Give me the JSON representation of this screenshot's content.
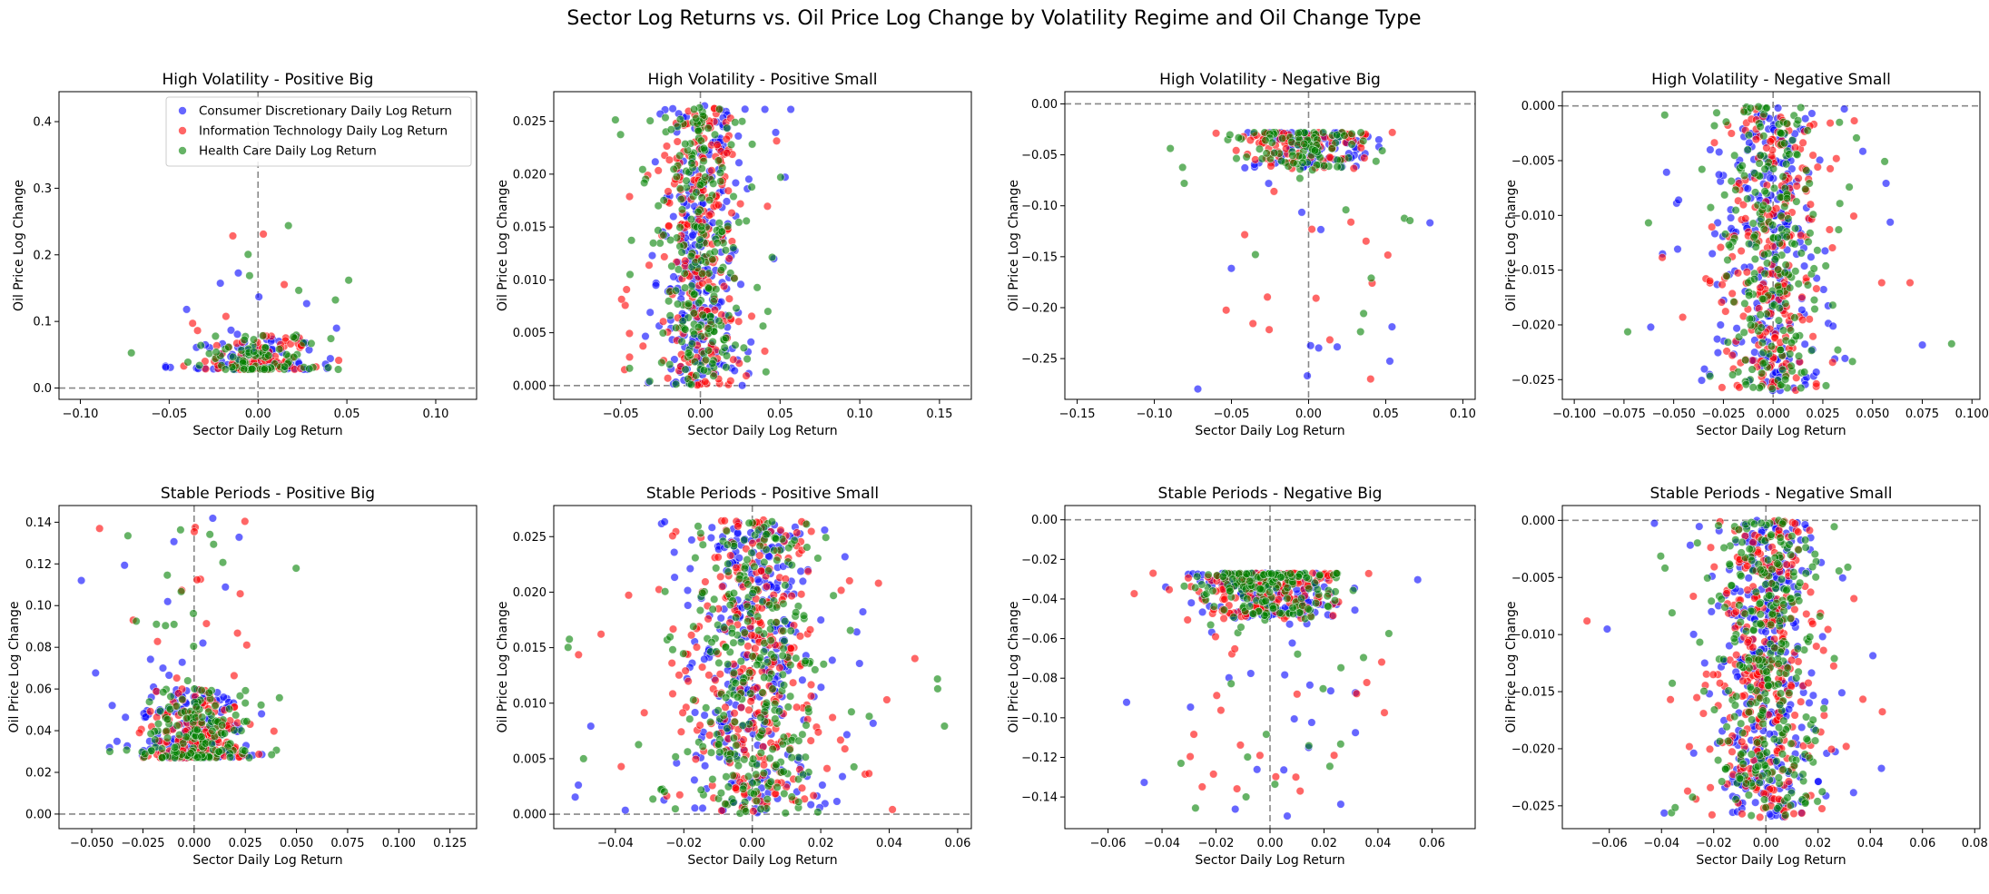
{
  "figure": {
    "title": "Sector Log Returns vs. Oil Price Log Change by Volatility Regime and Oil Change Type"
  },
  "colors": {
    "consumer_discretionary": "#0000ff",
    "information_technology": "#ff0000",
    "health_care": "#008000",
    "reference_line": "#888888"
  },
  "legend": {
    "placement": "upper-right of first panel",
    "entries": [
      "Consumer Discretionary Daily Log Return",
      "Information Technology Daily Log Return",
      "Health Care Daily Log Return"
    ]
  },
  "chart_data": [
    {
      "type": "scatter",
      "title": "High Volatility - Positive Big",
      "xlabel": "Sector Daily Log Return",
      "ylabel": "Oil Price Log Change",
      "xlim": [
        -0.112,
        0.123
      ],
      "ylim": [
        -0.017,
        0.445
      ],
      "xticks": [
        -0.1,
        -0.05,
        0.0,
        0.05,
        0.1
      ],
      "xtick_labels": [
        "−0.10",
        "−0.05",
        "0.00",
        "0.05",
        "0.10"
      ],
      "yticks": [
        0.0,
        0.1,
        0.2,
        0.3,
        0.4
      ],
      "ytick_labels": [
        "0.0",
        "0.1",
        "0.2",
        "0.3",
        "0.4"
      ],
      "reference_lines": {
        "x": 0,
        "y": 0
      },
      "legend": true,
      "distribution": {
        "ycore": [
          0.028,
          0.08
        ],
        "xcore_sd": 0.017,
        "ytail_max": 0.25,
        "xtail": [
          -0.105,
          0.12
        ],
        "n": 260
      }
    },
    {
      "type": "scatter",
      "title": "High Volatility - Positive Small",
      "xlabel": "Sector Daily Log Return",
      "ylabel": "Oil Price Log Change",
      "xlim": [
        -0.092,
        0.17
      ],
      "ylim": [
        -0.0013,
        0.0278
      ],
      "xticks": [
        -0.05,
        0.0,
        0.05,
        0.1,
        0.15
      ],
      "xtick_labels": [
        "−0.05",
        "0.00",
        "0.05",
        "0.10",
        "0.15"
      ],
      "yticks": [
        0.0,
        0.005,
        0.01,
        0.015,
        0.02,
        0.025
      ],
      "ytick_labels": [
        "0.000",
        "0.005",
        "0.010",
        "0.015",
        "0.020",
        "0.025"
      ],
      "reference_lines": {
        "x": 0,
        "y": 0
      },
      "legend": false,
      "distribution": {
        "ycore": [
          0.0,
          0.0265
        ],
        "xcore_sd": 0.012,
        "xtail": [
          -0.085,
          0.16
        ],
        "n": 700
      }
    },
    {
      "type": "scatter",
      "title": "High Volatility - Negative Big",
      "xlabel": "Sector Daily Log Return",
      "ylabel": "Oil Price Log Change",
      "xlim": [
        -0.158,
        0.108
      ],
      "ylim": [
        -0.29,
        0.012
      ],
      "xticks": [
        -0.15,
        -0.1,
        -0.05,
        0.0,
        0.05,
        0.1
      ],
      "xtick_labels": [
        "−0.15",
        "−0.10",
        "−0.05",
        "0.00",
        "0.05",
        "0.10"
      ],
      "yticks": [
        0.0,
        -0.05,
        -0.1,
        -0.15,
        -0.2,
        -0.25
      ],
      "ytick_labels": [
        "0.00",
        "−0.05",
        "−0.10",
        "−0.15",
        "−0.20",
        "−0.25"
      ],
      "reference_lines": {
        "x": 0,
        "y": 0
      },
      "legend": false,
      "distribution": {
        "ycore": [
          -0.065,
          -0.028
        ],
        "xcore_sd": 0.022,
        "ytail_min": -0.28,
        "xtail": [
          -0.15,
          0.1
        ],
        "n": 300
      }
    },
    {
      "type": "scatter",
      "title": "High Volatility - Negative Small",
      "xlabel": "Sector Daily Log Return",
      "ylabel": "Oil Price Log Change",
      "xlim": [
        -0.106,
        0.104
      ],
      "ylim": [
        -0.0268,
        0.0013
      ],
      "xticks": [
        -0.1,
        -0.075,
        -0.05,
        -0.025,
        0.0,
        0.025,
        0.05,
        0.075,
        0.1
      ],
      "xtick_labels": [
        "−0.100",
        "−0.075",
        "−0.050",
        "−0.025",
        "0.000",
        "0.025",
        "0.050",
        "0.075",
        "0.100"
      ],
      "yticks": [
        0.0,
        -0.005,
        -0.01,
        -0.015,
        -0.02,
        -0.025
      ],
      "ytick_labels": [
        "0.000",
        "−0.005",
        "−0.010",
        "−0.015",
        "−0.020",
        "−0.025"
      ],
      "reference_lines": {
        "x": 0,
        "y": 0
      },
      "legend": false,
      "distribution": {
        "ycore": [
          -0.026,
          0.0
        ],
        "xcore_sd": 0.012,
        "xtail": [
          -0.1,
          0.1
        ],
        "n": 700
      }
    },
    {
      "type": "scatter",
      "title": "Stable Periods - Positive Big",
      "xlabel": "Sector Daily Log Return",
      "ylabel": "Oil Price Log Change",
      "xlim": [
        -0.066,
        0.138
      ],
      "ylim": [
        -0.007,
        0.148
      ],
      "xticks": [
        -0.05,
        -0.025,
        0.0,
        0.025,
        0.05,
        0.075,
        0.1,
        0.125
      ],
      "xtick_labels": [
        "−0.050",
        "−0.025",
        "0.000",
        "0.025",
        "0.050",
        "0.075",
        "0.100",
        "0.125"
      ],
      "yticks": [
        0.0,
        0.02,
        0.04,
        0.06,
        0.08,
        0.1,
        0.12,
        0.14
      ],
      "ytick_labels": [
        "0.00",
        "0.02",
        "0.04",
        "0.06",
        "0.08",
        "0.10",
        "0.12",
        "0.14"
      ],
      "reference_lines": {
        "x": 0,
        "y": 0
      },
      "legend": false,
      "distribution": {
        "ycore": [
          0.027,
          0.06
        ],
        "xcore_sd": 0.012,
        "ytail_max": 0.142,
        "xtail": [
          -0.06,
          0.13
        ],
        "n": 500
      }
    },
    {
      "type": "scatter",
      "title": "Stable Periods - Positive Small",
      "xlabel": "Sector Daily Log Return",
      "ylabel": "Oil Price Log Change",
      "xlim": [
        -0.058,
        0.064
      ],
      "ylim": [
        -0.0013,
        0.0278
      ],
      "xticks": [
        -0.04,
        -0.02,
        0.0,
        0.02,
        0.04,
        0.06
      ],
      "xtick_labels": [
        "−0.04",
        "−0.02",
        "0.00",
        "0.02",
        "0.04",
        "0.06"
      ],
      "yticks": [
        0.0,
        0.005,
        0.01,
        0.015,
        0.02,
        0.025
      ],
      "ytick_labels": [
        "0.000",
        "0.005",
        "0.010",
        "0.015",
        "0.020",
        "0.025"
      ],
      "reference_lines": {
        "x": 0,
        "y": 0
      },
      "legend": false,
      "distribution": {
        "ycore": [
          0.0,
          0.0265
        ],
        "xcore_sd": 0.009,
        "xtail": [
          -0.054,
          0.061
        ],
        "n": 900
      }
    },
    {
      "type": "scatter",
      "title": "Stable Periods - Negative Big",
      "xlabel": "Sector Daily Log Return",
      "ylabel": "Oil Price Log Change",
      "xlim": [
        -0.076,
        0.076
      ],
      "ylim": [
        -0.156,
        0.0072
      ],
      "xticks": [
        -0.06,
        -0.04,
        -0.02,
        0.0,
        0.02,
        0.04,
        0.06
      ],
      "xtick_labels": [
        "−0.06",
        "−0.04",
        "−0.02",
        "0.00",
        "0.02",
        "0.04",
        "0.06"
      ],
      "yticks": [
        0.0,
        -0.02,
        -0.04,
        -0.06,
        -0.08,
        -0.1,
        -0.12,
        -0.14
      ],
      "ytick_labels": [
        "0.00",
        "−0.02",
        "−0.04",
        "−0.06",
        "−0.08",
        "−0.10",
        "−0.12",
        "−0.14"
      ],
      "reference_lines": {
        "x": 0,
        "y": 0
      },
      "legend": false,
      "distribution": {
        "ycore": [
          -0.05,
          -0.027
        ],
        "xcore_sd": 0.012,
        "ytail_min": -0.153,
        "xtail": [
          -0.072,
          0.07
        ],
        "n": 550
      }
    },
    {
      "type": "scatter",
      "title": "Stable Periods - Negative Small",
      "xlabel": "Sector Daily Log Return",
      "ylabel": "Oil Price Log Change",
      "xlim": [
        -0.078,
        0.082
      ],
      "ylim": [
        -0.027,
        0.0013
      ],
      "xticks": [
        -0.06,
        -0.04,
        -0.02,
        0.0,
        0.02,
        0.04,
        0.06,
        0.08
      ],
      "xtick_labels": [
        "−0.06",
        "−0.04",
        "−0.02",
        "0.00",
        "0.02",
        "0.04",
        "0.06",
        "0.08"
      ],
      "yticks": [
        0.0,
        -0.005,
        -0.01,
        -0.015,
        -0.02,
        -0.025
      ],
      "ytick_labels": [
        "0.000",
        "−0.005",
        "−0.010",
        "−0.015",
        "−0.020",
        "−0.025"
      ],
      "reference_lines": {
        "x": 0,
        "y": 0
      },
      "legend": false,
      "distribution": {
        "ycore": [
          -0.026,
          0.0
        ],
        "xcore_sd": 0.009,
        "xtail": [
          -0.07,
          0.076
        ],
        "n": 900
      }
    }
  ]
}
